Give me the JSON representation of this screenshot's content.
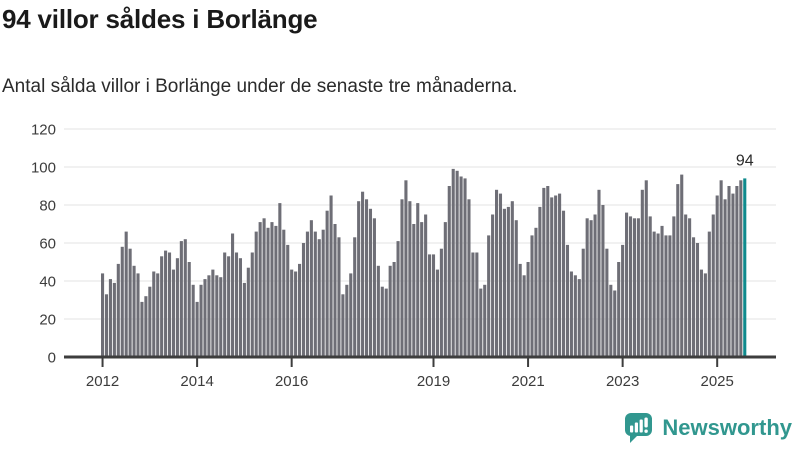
{
  "header": {
    "title": "94 villor såldes i Borlänge",
    "subtitle": "Antal sålda villor i Borlänge under de senaste tre månaderna."
  },
  "chart_data": {
    "type": "bar",
    "title": "94 villor såldes i Borlänge",
    "subtitle": "Antal sålda villor i Borlänge under de senaste tre månaderna.",
    "xlabel": "",
    "ylabel": "",
    "ylim": [
      0,
      120
    ],
    "yticks": [
      0,
      20,
      40,
      60,
      80,
      100,
      120
    ],
    "grid": "horizontal",
    "legend": "none",
    "frequency": "monthly",
    "x_start": "2012-01",
    "xticks": [
      {
        "label": "2012",
        "month_index": 0
      },
      {
        "label": "2014",
        "month_index": 24
      },
      {
        "label": "2016",
        "month_index": 48
      },
      {
        "label": "2019",
        "month_index": 84
      },
      {
        "label": "2021",
        "month_index": 108
      },
      {
        "label": "2023",
        "month_index": 132
      },
      {
        "label": "2025",
        "month_index": 156
      }
    ],
    "values": [
      44,
      33,
      41,
      39,
      49,
      58,
      66,
      57,
      48,
      44,
      29,
      32,
      37,
      45,
      44,
      53,
      56,
      55,
      46,
      52,
      61,
      62,
      50,
      38,
      29,
      38,
      41,
      43,
      46,
      43,
      42,
      55,
      53,
      65,
      55,
      52,
      39,
      47,
      55,
      66,
      71,
      73,
      68,
      71,
      69,
      81,
      67,
      59,
      46,
      45,
      49,
      60,
      66,
      72,
      66,
      62,
      67,
      77,
      85,
      70,
      63,
      33,
      38,
      44,
      63,
      82,
      87,
      83,
      78,
      73,
      48,
      37,
      36,
      48,
      50,
      61,
      83,
      93,
      82,
      70,
      81,
      71,
      75,
      54,
      54,
      46,
      57,
      71,
      90,
      99,
      98,
      95,
      94,
      83,
      55,
      55,
      36,
      38,
      64,
      75,
      88,
      86,
      78,
      79,
      82,
      72,
      49,
      43,
      50,
      64,
      68,
      79,
      89,
      90,
      84,
      85,
      86,
      77,
      59,
      45,
      43,
      41,
      57,
      73,
      72,
      75,
      88,
      80,
      57,
      38,
      35,
      50,
      59,
      76,
      74,
      73,
      73,
      88,
      93,
      74,
      66,
      65,
      69,
      64,
      64,
      74,
      91,
      96,
      75,
      73,
      63,
      60,
      46,
      44,
      66,
      75,
      85,
      93,
      83,
      90,
      86,
      90,
      93,
      94
    ],
    "highlight": {
      "index": 163,
      "value": 94,
      "label": "94"
    },
    "colors": {
      "bar": "#6e6e76",
      "highlight": "#0f8a8d",
      "grid": "#e3e3e3",
      "axis": "#3d3d3d",
      "tick_text": "#3c3c3c",
      "annotation_text": "#2b2b2b"
    }
  },
  "footer": {
    "brand": "Newsworthy",
    "brand_color": "#31978f"
  }
}
